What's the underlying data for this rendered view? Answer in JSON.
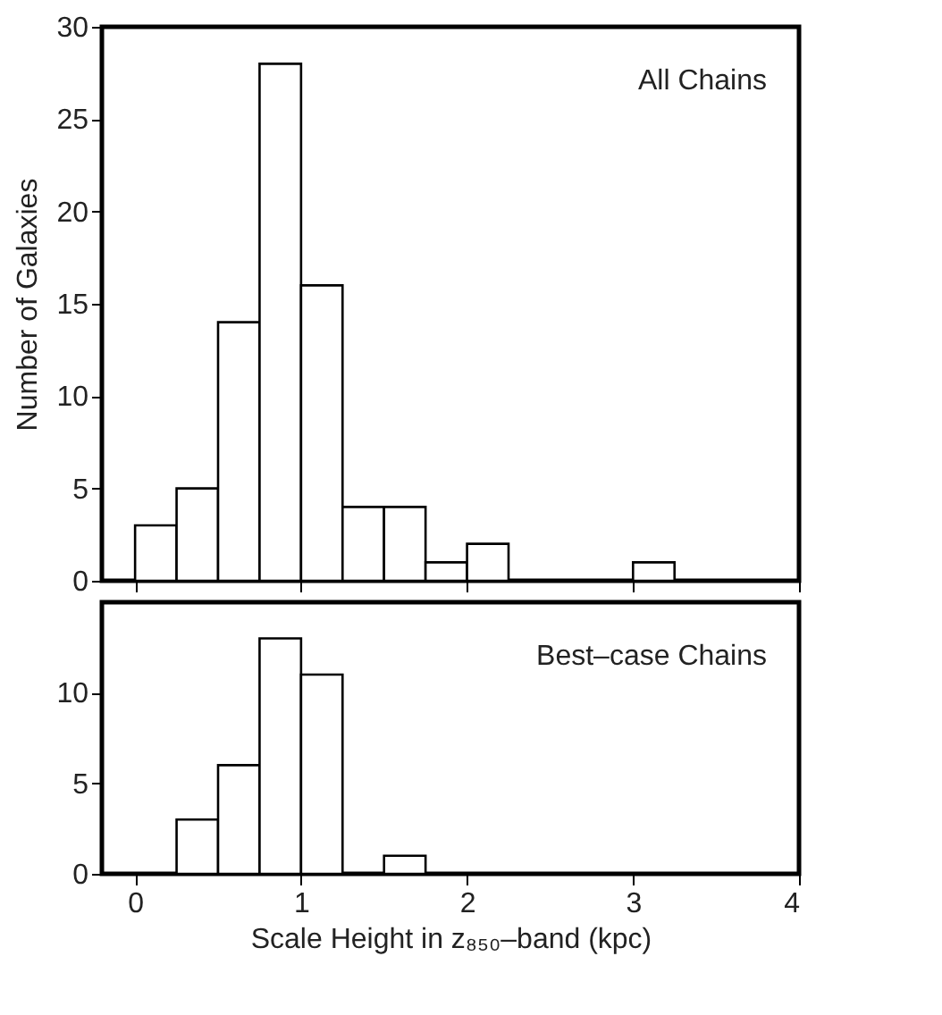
{
  "chart_data": [
    {
      "type": "histogram",
      "ylabel": "Number of Galaxies",
      "annotations": [
        "All Chains"
      ],
      "bins": [
        0,
        0.25,
        0.5,
        0.75,
        1,
        1.25,
        1.5,
        1.75,
        2,
        2.25,
        2.5,
        2.75,
        3,
        3.25
      ],
      "values": [
        3,
        5,
        14,
        28,
        16,
        4,
        4,
        1,
        2,
        0,
        0,
        0,
        1
      ],
      "color": "#ffffff",
      "xlim": [
        -0.2,
        4
      ],
      "xticks": [
        0,
        1,
        2,
        3,
        4
      ],
      "ylim": [
        0,
        30
      ],
      "yticks": [
        0,
        5,
        10,
        15,
        20,
        25,
        30
      ],
      "tick_labels": "y",
      "grid": false
    },
    {
      "type": "histogram",
      "xlabel": "Scale Height in z₈₅₀–band (kpc)",
      "annotations": [
        "Best–case Chains"
      ],
      "bins": [
        0,
        0.25,
        0.5,
        0.75,
        1,
        1.25,
        1.5,
        1.75
      ],
      "values": [
        0,
        3,
        6,
        13,
        11,
        0,
        1
      ],
      "color": "#ffffff",
      "xlim": [
        -0.2,
        4
      ],
      "xticks": [
        0,
        1,
        2,
        3,
        4
      ],
      "ylim": [
        0,
        15
      ],
      "yticks": [
        0,
        5,
        10
      ],
      "grid": false
    }
  ]
}
